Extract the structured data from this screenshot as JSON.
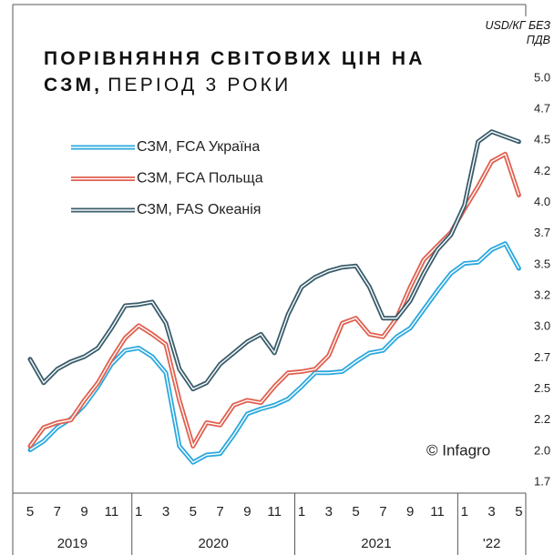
{
  "chart_data": {
    "type": "line",
    "title": "ПОРІВНЯННЯ СВІТОВИХ ЦІН НА СЗМ,",
    "subtitle": "ПЕРІОД 3 РОКИ",
    "ylabel": "USD/КГ БЕЗ ПДВ",
    "annotation": "© Infagro",
    "categories": [
      "5",
      null,
      "7",
      null,
      "9",
      null,
      "11",
      null,
      "1",
      null,
      "3",
      null,
      "5",
      null,
      "7",
      null,
      "9",
      null,
      "11",
      null,
      "1",
      null,
      "3",
      null,
      "5",
      null,
      "7",
      null,
      "9",
      null,
      "11",
      null,
      "1",
      null,
      "3",
      null,
      "5"
    ],
    "x_groups": [
      "2019",
      "2020",
      "2021",
      "'22"
    ],
    "ylim": [
      1.65,
      5.6
    ],
    "yticks": [
      {
        "value": 1.75,
        "label": "1.7"
      },
      {
        "value": 2,
        "label": "2.0"
      },
      {
        "value": 2.25,
        "label": "2.2"
      },
      2.5,
      {
        "value": 2.75,
        "label": "2.7"
      },
      {
        "value": 3,
        "label": "3.0"
      },
      {
        "value": 3.25,
        "label": "3.2"
      },
      3.5,
      {
        "value": 3.75,
        "label": "3.7"
      },
      {
        "value": 4,
        "label": "4.0"
      },
      {
        "value": 4.25,
        "label": "4.2"
      },
      4.5,
      {
        "value": 4.75,
        "label": "4.7"
      },
      {
        "value": 5,
        "label": "5.0"
      }
    ],
    "grid": false,
    "legend": "top-left",
    "series": [
      {
        "name": "СЗМ, FCA Україна",
        "color": "#2ba8de",
        "values": [
          2.01,
          2.08,
          2.19,
          2.26,
          2.37,
          2.52,
          2.7,
          2.81,
          2.83,
          2.76,
          2.63,
          2.04,
          1.91,
          1.97,
          1.98,
          2.13,
          2.3,
          2.34,
          2.37,
          2.42,
          2.52,
          2.63,
          2.63,
          2.64,
          2.72,
          2.79,
          2.81,
          2.92,
          2.99,
          3.14,
          3.29,
          3.43,
          3.51,
          3.52,
          3.62,
          3.67,
          3.47
        ]
      },
      {
        "name": "СЗМ, FCA Польща",
        "color": "#e0604f",
        "values": [
          2.04,
          2.19,
          2.23,
          2.25,
          2.41,
          2.55,
          2.74,
          2.91,
          3.01,
          2.94,
          2.86,
          2.41,
          2.04,
          2.23,
          2.21,
          2.37,
          2.41,
          2.39,
          2.52,
          2.63,
          2.64,
          2.66,
          2.77,
          3.03,
          3.07,
          2.94,
          2.92,
          3.07,
          3.32,
          3.54,
          3.65,
          3.76,
          3.95,
          4.13,
          4.33,
          4.39,
          4.06
        ]
      },
      {
        "name": "СЗМ, FAS Океанія",
        "color": "#3a5d6c",
        "values": [
          2.74,
          2.55,
          2.66,
          2.72,
          2.76,
          2.83,
          2.99,
          3.17,
          3.18,
          3.2,
          3.03,
          2.66,
          2.5,
          2.55,
          2.7,
          2.79,
          2.88,
          2.94,
          2.79,
          3.1,
          3.32,
          3.4,
          3.45,
          3.48,
          3.49,
          3.32,
          3.07,
          3.07,
          3.21,
          3.43,
          3.62,
          3.74,
          3.98,
          4.49,
          4.57,
          4.53,
          4.49
        ]
      }
    ]
  }
}
